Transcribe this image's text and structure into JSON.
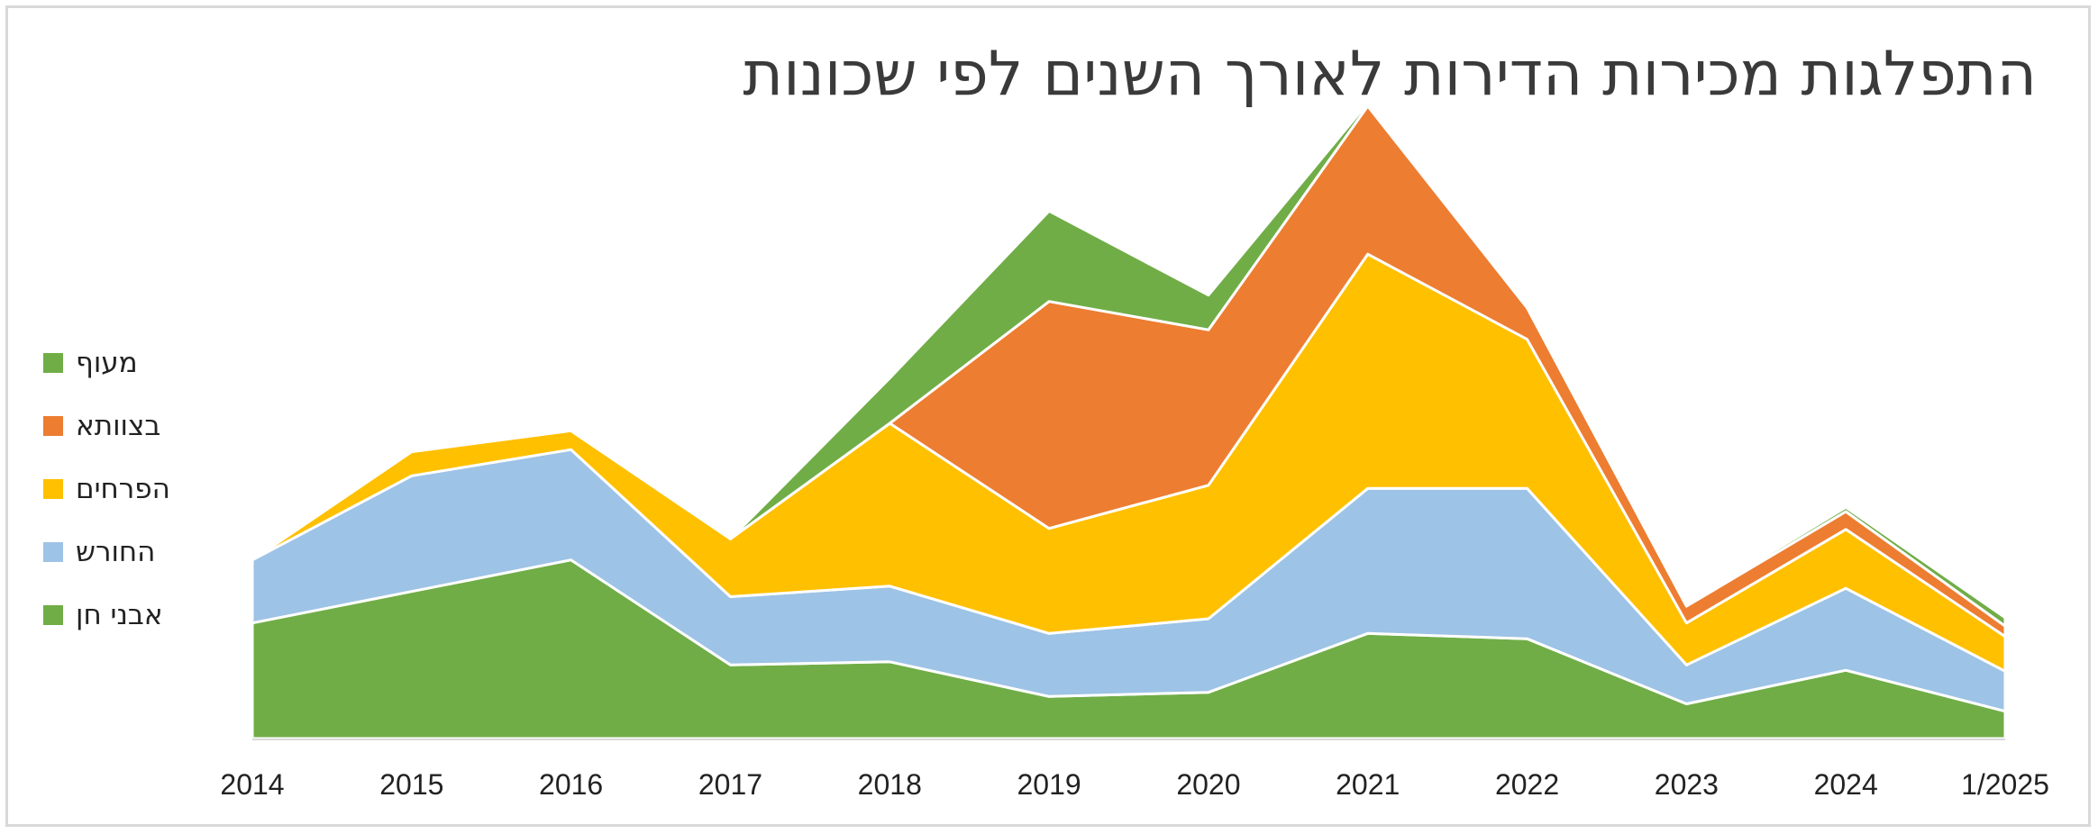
{
  "chart_data": {
    "type": "area",
    "stacked": true,
    "title": "התפלגות מכירות הדירות לאורך השנים לפי שכונות",
    "xlabel": "",
    "ylabel": "",
    "categories": [
      "2014",
      "2015",
      "2016",
      "2017",
      "2018",
      "2019",
      "2020",
      "2021",
      "2022",
      "2023",
      "2024",
      "1/2025"
    ],
    "ylim": [
      0,
      60
    ],
    "grid": false,
    "legend_position": "left",
    "series": [
      {
        "name": "אבני חן",
        "color": "#70ad47",
        "values": [
          11,
          14,
          17,
          7,
          7.3,
          4,
          4.4,
          10,
          9.5,
          3.3,
          6.5,
          2.6
        ]
      },
      {
        "name": "החורש",
        "color": "#9dc3e6",
        "values": [
          6,
          11,
          10.5,
          6.5,
          7.2,
          6,
          7,
          13.8,
          14.3,
          3.7,
          7.8,
          3.8
        ]
      },
      {
        "name": "הפרחים",
        "color": "#ffc000",
        "values": [
          0,
          2.3,
          1.8,
          5.5,
          15.5,
          10,
          12.7,
          22.3,
          14.2,
          4,
          5.6,
          3.3
        ]
      },
      {
        "name": "בצוותא",
        "color": "#ed7d31",
        "values": [
          0,
          0,
          0,
          0,
          0,
          21.6,
          14.8,
          14.1,
          3,
          1.6,
          1.7,
          1
        ]
      },
      {
        "name": "מעוף",
        "color": "#70ad47",
        "values": [
          0,
          0,
          0,
          0,
          4.3,
          8.6,
          3.3,
          0.3,
          0,
          0.2,
          0.4,
          0.8
        ]
      }
    ]
  }
}
